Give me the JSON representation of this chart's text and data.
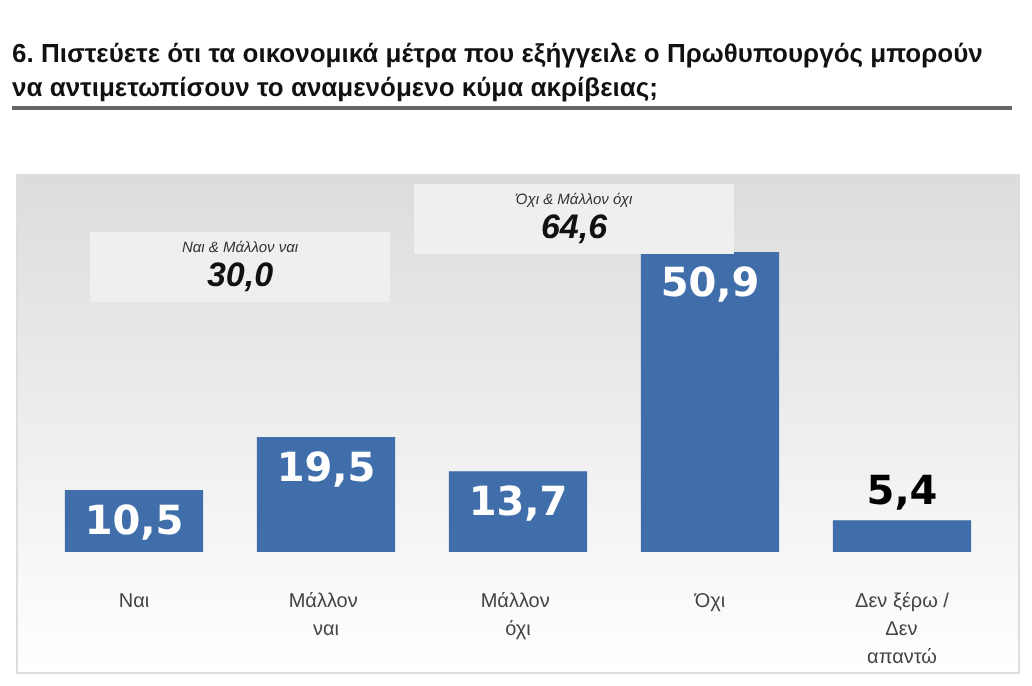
{
  "chart_data": {
    "type": "bar",
    "title": "6. Πιστεύετε ότι τα οικονομικά μέτρα που εξήγγειλε ο Πρωθυπουργός μπορούν να αντιμετωπίσουν το αναμενόμενο κύμα ακρίβειας;",
    "categories": [
      "Ναι",
      "Μάλλον ναι",
      "Μάλλον όχι",
      "Όχι",
      "Δεν ξέρω / Δεν απαντώ"
    ],
    "values": [
      10.5,
      19.5,
      13.7,
      50.9,
      5.4
    ],
    "value_labels": [
      "10,5",
      "19,5",
      "13,7",
      "50,9",
      "5,4"
    ],
    "color": "#3f6eaa",
    "annotations": [
      "Ναι & Μάλλον ναι",
      "30,0",
      "Όχι & Μάλλον όχι",
      "64,6"
    ],
    "grid": false
  }
}
